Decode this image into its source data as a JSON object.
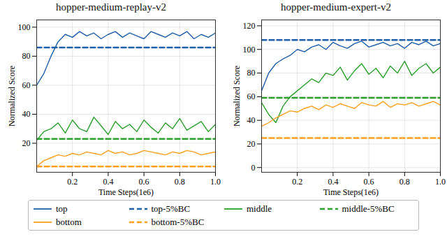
{
  "chart_data": [
    {
      "type": "line",
      "title": "hopper-medium-replay-v2",
      "x_label": "Time Steps(1e6)",
      "y_label": "Normalized Score",
      "x": [
        0,
        0.04,
        0.08,
        0.12,
        0.16,
        0.2,
        0.24,
        0.28,
        0.32,
        0.36,
        0.4,
        0.44,
        0.48,
        0.52,
        0.56,
        0.6,
        0.64,
        0.68,
        0.72,
        0.76,
        0.8,
        0.84,
        0.88,
        0.92,
        0.96,
        1.0
      ],
      "xlim": [
        0,
        1
      ],
      "xticks": [
        0.2,
        0.4,
        0.6,
        0.8,
        {
          "value": 1,
          "label": "1.0"
        }
      ],
      "ylim": [
        0,
        105
      ],
      "yticks": [
        20,
        40,
        60,
        80,
        100
      ],
      "grid": true,
      "legend": "bottom",
      "series": [
        {
          "name": "top",
          "color": "#1f5fa8",
          "line_style": "solid",
          "values": [
            60,
            68,
            80,
            90,
            95,
            93,
            97,
            94,
            96,
            92,
            95,
            97,
            93,
            96,
            94,
            92,
            97,
            95,
            93,
            96,
            94,
            97,
            92,
            95,
            93,
            96
          ]
        },
        {
          "name": "top-5%BC",
          "color": "#1f5fa8",
          "line_style": "dashed",
          "values": [
            86,
            86,
            86,
            86,
            86,
            86,
            86,
            86,
            86,
            86,
            86,
            86,
            86,
            86,
            86,
            86,
            86,
            86,
            86,
            86,
            86,
            86,
            86,
            86,
            86,
            86
          ]
        },
        {
          "name": "middle",
          "color": "#2ca02c",
          "line_style": "solid",
          "values": [
            22,
            28,
            30,
            34,
            27,
            36,
            30,
            28,
            38,
            32,
            26,
            35,
            30,
            33,
            28,
            36,
            31,
            27,
            34,
            30,
            37,
            29,
            32,
            35,
            28,
            33
          ]
        },
        {
          "name": "middle-5%BC",
          "color": "#2ca02c",
          "line_style": "dashed",
          "values": [
            23,
            23,
            23,
            23,
            23,
            23,
            23,
            23,
            23,
            23,
            23,
            23,
            23,
            23,
            23,
            23,
            23,
            23,
            23,
            23,
            23,
            23,
            23,
            23,
            23,
            23
          ]
        },
        {
          "name": "bottom",
          "color": "#ff9f1c",
          "line_style": "solid",
          "values": [
            4,
            8,
            10,
            12,
            11,
            13,
            12,
            14,
            13,
            12,
            15,
            13,
            14,
            12,
            13,
            15,
            14,
            13,
            12,
            14,
            13,
            15,
            14,
            12,
            13,
            14
          ]
        },
        {
          "name": "bottom-5%BC",
          "color": "#ff9f1c",
          "line_style": "dashed",
          "values": [
            4,
            4,
            4,
            4,
            4,
            4,
            4,
            4,
            4,
            4,
            4,
            4,
            4,
            4,
            4,
            4,
            4,
            4,
            4,
            4,
            4,
            4,
            4,
            4,
            4,
            4
          ]
        }
      ]
    },
    {
      "type": "line",
      "title": "hopper-medium-expert-v2",
      "x_label": "Time Steps(1e6)",
      "y_label": "Normalized Score",
      "x": [
        0,
        0.04,
        0.08,
        0.12,
        0.16,
        0.2,
        0.24,
        0.28,
        0.32,
        0.36,
        0.4,
        0.44,
        0.48,
        0.52,
        0.56,
        0.6,
        0.64,
        0.68,
        0.72,
        0.76,
        0.8,
        0.84,
        0.88,
        0.92,
        0.96,
        1.0
      ],
      "xlim": [
        0,
        1
      ],
      "xticks": [
        0.2,
        0.4,
        0.6,
        0.8,
        {
          "value": 1,
          "label": "1.0"
        }
      ],
      "ylim": [
        -4,
        125
      ],
      "yticks": [
        0,
        20,
        40,
        60,
        80,
        100,
        120
      ],
      "grid": true,
      "legend": "bottom",
      "series": [
        {
          "name": "top",
          "color": "#1f5fa8",
          "line_style": "solid",
          "values": [
            65,
            80,
            88,
            92,
            95,
            100,
            98,
            102,
            104,
            100,
            106,
            103,
            101,
            105,
            107,
            102,
            104,
            106,
            103,
            105,
            101,
            106,
            104,
            107,
            103,
            105
          ]
        },
        {
          "name": "top-5%BC",
          "color": "#1f5fa8",
          "line_style": "dashed",
          "values": [
            108,
            108,
            108,
            108,
            108,
            108,
            108,
            108,
            108,
            108,
            108,
            108,
            108,
            108,
            108,
            108,
            108,
            108,
            108,
            108,
            108,
            108,
            108,
            108,
            108,
            108
          ]
        },
        {
          "name": "middle",
          "color": "#2ca02c",
          "line_style": "solid",
          "values": [
            55,
            45,
            38,
            52,
            60,
            65,
            70,
            75,
            72,
            80,
            78,
            85,
            74,
            82,
            88,
            79,
            84,
            76,
            86,
            80,
            90,
            78,
            84,
            88,
            80,
            85
          ]
        },
        {
          "name": "middle-5%BC",
          "color": "#2ca02c",
          "line_style": "dashed",
          "values": [
            59,
            59,
            59,
            59,
            59,
            59,
            59,
            59,
            59,
            59,
            59,
            59,
            59,
            59,
            59,
            59,
            59,
            59,
            59,
            59,
            59,
            59,
            59,
            59,
            59,
            59
          ]
        },
        {
          "name": "bottom",
          "color": "#ff9f1c",
          "line_style": "solid",
          "values": [
            35,
            38,
            42,
            45,
            48,
            47,
            50,
            52,
            49,
            53,
            51,
            54,
            52,
            50,
            55,
            53,
            52,
            56,
            51,
            54,
            53,
            55,
            52,
            54,
            56,
            53
          ]
        },
        {
          "name": "bottom-5%BC",
          "color": "#ff9f1c",
          "line_style": "dashed",
          "values": [
            25,
            25,
            25,
            25,
            25,
            25,
            25,
            25,
            25,
            25,
            25,
            25,
            25,
            25,
            25,
            25,
            25,
            25,
            25,
            25,
            25,
            25,
            25,
            25,
            25,
            25
          ]
        }
      ]
    }
  ]
}
